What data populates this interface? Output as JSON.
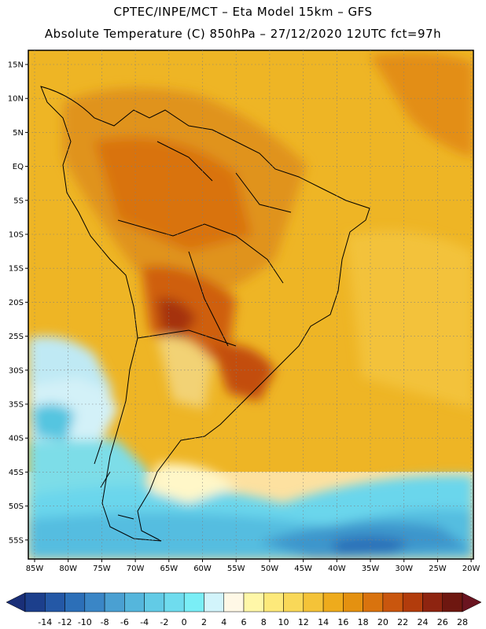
{
  "header": {
    "title_line1": "CPTEC/INPE/MCT –   Eta Model 15km – GFS",
    "title_line2": "Absolute Temperature (C) 850hPa – 27/12/2020 12UTC fct=97h"
  },
  "map": {
    "variable": "Absolute Temperature",
    "units": "C",
    "level": "850hPa",
    "lat_labels": [
      "15N",
      "10N",
      "5N",
      "EQ",
      "5S",
      "10S",
      "15S",
      "20S",
      "25S",
      "30S",
      "35S",
      "40S",
      "45S",
      "50S",
      "55S"
    ],
    "lon_labels": [
      "85W",
      "80W",
      "75W",
      "70W",
      "65W",
      "60W",
      "55W",
      "50W",
      "45W",
      "40W",
      "35W",
      "30W",
      "25W",
      "20W"
    ]
  },
  "colorbar": {
    "labels": [
      "-14",
      "-12",
      "-10",
      "-8",
      "-6",
      "-4",
      "-2",
      "0",
      "2",
      "4",
      "6",
      "8",
      "10",
      "12",
      "14",
      "16",
      "18",
      "20",
      "22",
      "24",
      "26",
      "28"
    ],
    "colors": [
      "#1c3f8c",
      "#2458a6",
      "#2c6fb8",
      "#3a86c6",
      "#4aa0d2",
      "#55b6dc",
      "#62cbe6",
      "#6fdcee",
      "#7aeef6",
      "#d2f4fb",
      "#fff8e6",
      "#fff7a8",
      "#fde97a",
      "#f9d858",
      "#f4c338",
      "#eeab1c",
      "#e49110",
      "#d9730e",
      "#c9560e",
      "#b23c0c",
      "#8e2410",
      "#6e1710"
    ],
    "low_extend": "#1a2f78",
    "high_extend": "#6a1420"
  }
}
